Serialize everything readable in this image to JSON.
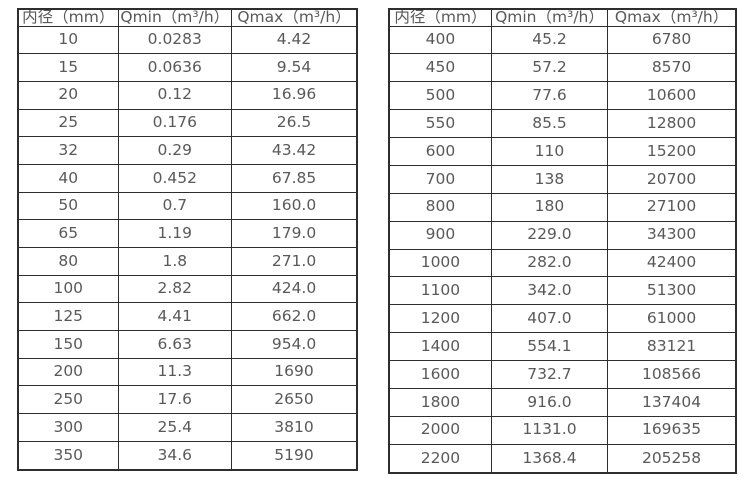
{
  "colors": {
    "background": "#ffffff",
    "border": "#2e2e2e",
    "text": "#595959"
  },
  "tables": [
    {
      "name": "flow-rate-table-small-diameters",
      "headers": [
        "内径（mm）",
        "Qmin（m³/h）",
        "Qmax（m³/h）"
      ],
      "rows": [
        [
          "10",
          "0.0283",
          "4.42"
        ],
        [
          "15",
          "0.0636",
          "9.54"
        ],
        [
          "20",
          "0.12",
          "16.96"
        ],
        [
          "25",
          "0.176",
          "26.5"
        ],
        [
          "32",
          "0.29",
          "43.42"
        ],
        [
          "40",
          "0.452",
          "67.85"
        ],
        [
          "50",
          "0.7",
          "160.0"
        ],
        [
          "65",
          "1.19",
          "179.0"
        ],
        [
          "80",
          "1.8",
          "271.0"
        ],
        [
          "100",
          "2.82",
          "424.0"
        ],
        [
          "125",
          "4.41",
          "662.0"
        ],
        [
          "150",
          "6.63",
          "954.0"
        ],
        [
          "200",
          "11.3",
          "1690"
        ],
        [
          "250",
          "17.6",
          "2650"
        ],
        [
          "300",
          "25.4",
          "3810"
        ],
        [
          "350",
          "34.6",
          "5190"
        ]
      ]
    },
    {
      "name": "flow-rate-table-large-diameters",
      "headers": [
        "内径（mm）",
        "Qmin（m³/h）",
        "Qmax（m³/h）"
      ],
      "rows": [
        [
          "400",
          "45.2",
          "6780"
        ],
        [
          "450",
          "57.2",
          "8570"
        ],
        [
          "500",
          "77.6",
          "10600"
        ],
        [
          "550",
          "85.5",
          "12800"
        ],
        [
          "600",
          "110",
          "15200"
        ],
        [
          "700",
          "138",
          "20700"
        ],
        [
          "800",
          "180",
          "27100"
        ],
        [
          "900",
          "229.0",
          "34300"
        ],
        [
          "1000",
          "282.0",
          "42400"
        ],
        [
          "1100",
          "342.0",
          "51300"
        ],
        [
          "1200",
          "407.0",
          "61000"
        ],
        [
          "1400",
          "554.1",
          "83121"
        ],
        [
          "1600",
          "732.7",
          "108566"
        ],
        [
          "1800",
          "916.0",
          "137404"
        ],
        [
          "2000",
          "1131.0",
          "169635"
        ],
        [
          "2200",
          "1368.4",
          "205258"
        ]
      ]
    }
  ]
}
